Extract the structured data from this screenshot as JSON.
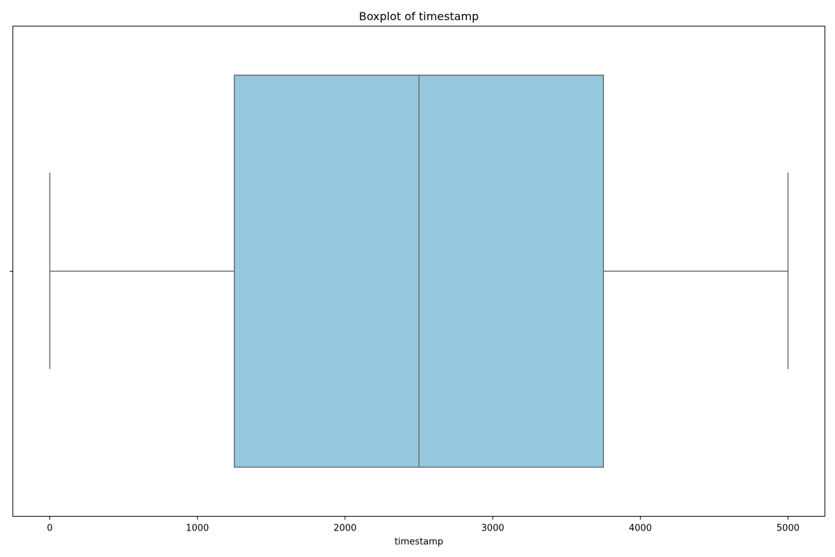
{
  "chart_data": {
    "type": "box",
    "title": "Boxplot of timestamp",
    "xlabel": "timestamp",
    "ylabel": "",
    "orientation": "horizontal",
    "xlim": [
      -250,
      5250
    ],
    "xticks": [
      0,
      1000,
      2000,
      3000,
      4000,
      5000
    ],
    "grid": false,
    "legend": "none",
    "box": {
      "whisker_low": 0,
      "q1": 1250,
      "median": 2500,
      "q3": 3750,
      "whisker_high": 5000
    },
    "colors": {
      "box_fill": "#95c8de",
      "line": "#6b6b6b",
      "axes": "#000000"
    }
  }
}
